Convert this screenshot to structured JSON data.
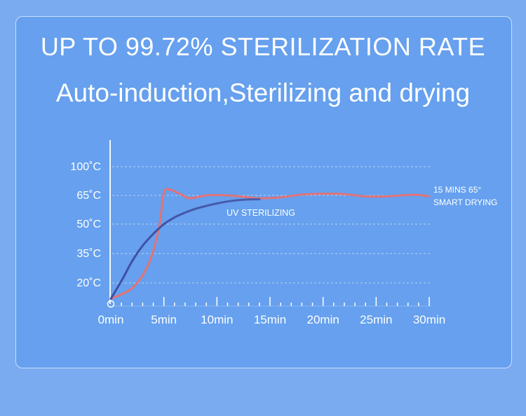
{
  "header": {
    "title": "UP TO 99.72% STERILIZATION RATE",
    "subtitle": "Auto-induction,Sterilizing and drying"
  },
  "colors": {
    "background": "#7aabf0",
    "panel": "#66a0ee",
    "uv_line": "#4a5fae",
    "drying_line": "#e07378",
    "text": "#ffffff"
  },
  "chart_data": {
    "type": "line",
    "title": "UP TO 99.72% STERILIZATION RATE",
    "subtitle": "Auto-induction,Sterilizing and drying",
    "xlabel": "",
    "ylabel": "",
    "x_ticks": [
      "0min",
      "5min",
      "10min",
      "15min",
      "20min",
      "25min",
      "30min"
    ],
    "x_tick_values": [
      0,
      5,
      10,
      15,
      20,
      25,
      30
    ],
    "y_ticks": [
      "20˚C",
      "35˚C",
      "50˚C",
      "65˚C",
      "100˚C"
    ],
    "xlim": [
      0,
      30
    ],
    "grid": "horizontal-dashed",
    "series": [
      {
        "name": "UV STERILIZING",
        "color": "#4a5fae",
        "x": [
          0,
          1,
          2,
          3,
          4,
          5,
          6,
          7,
          8,
          9,
          10,
          11,
          12,
          13,
          14
        ],
        "y": [
          5,
          21,
          31,
          39,
          45,
          50,
          53.5,
          56,
          58,
          59.5,
          60.8,
          61.8,
          62.5,
          62.9,
          63
        ]
      },
      {
        "name": "15 MINS 65° SMART DRYING",
        "color": "#e07378",
        "x": [
          0,
          2,
          3.5,
          4.5,
          5,
          5.5,
          6,
          6.8,
          7.5,
          9,
          11,
          13,
          14,
          16,
          18,
          20,
          22,
          24,
          26,
          28,
          29,
          30
        ],
        "y": [
          5,
          15,
          29,
          47,
          68,
          72,
          70,
          65,
          63.5,
          65,
          65,
          64,
          63.5,
          64,
          66,
          67,
          66.5,
          64.5,
          64.5,
          65.5,
          65.5,
          64.5
        ]
      }
    ],
    "annotations": [
      {
        "text": "UV STERILIZING",
        "near_series": "UV STERILIZING"
      },
      {
        "text": "15 MINS 65°",
        "near_series": "15 MINS 65° SMART DRYING"
      },
      {
        "text": "SMART DRYING",
        "near_series": "15 MINS 65° SMART DRYING"
      }
    ]
  }
}
